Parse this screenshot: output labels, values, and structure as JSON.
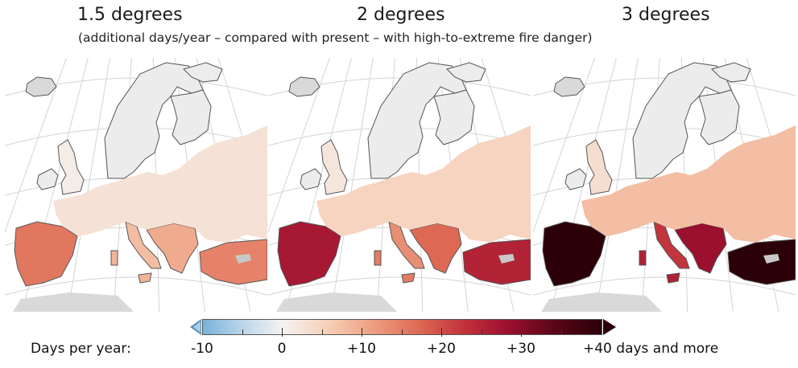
{
  "scenarios": [
    {
      "title": "1.5 degrees",
      "intensity": 0.35
    },
    {
      "title": "2 degrees",
      "intensity": 0.6
    },
    {
      "title": "3 degrees",
      "intensity": 1.0
    }
  ],
  "subtitle": "(additional days/year – compared with present – with high-to-extreme fire danger)",
  "legend": {
    "label": "Days per year:",
    "ticks": [
      "-10",
      "0",
      "+10",
      "+20",
      "+30",
      "+40 days and more"
    ],
    "tick_values": [
      -10,
      0,
      10,
      20,
      30,
      40
    ],
    "range": [
      -10,
      40
    ],
    "colors": {
      "low": "#7bb2d9",
      "zero": "#f4f3f2",
      "mid": "#de6a55",
      "high": "#2b0008"
    }
  }
}
